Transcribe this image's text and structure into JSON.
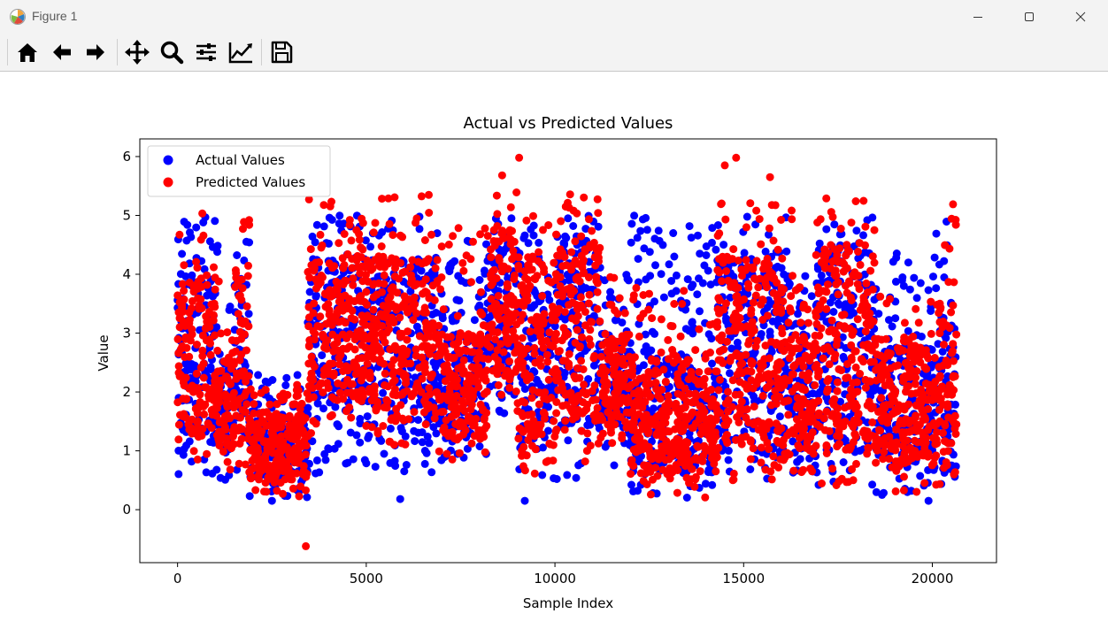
{
  "window": {
    "title": "Figure 1",
    "icon": "matplotlib-logo-icon",
    "controls": [
      "minimize-icon",
      "maximize-icon",
      "close-icon"
    ]
  },
  "toolbar": {
    "tools": [
      {
        "name": "home",
        "icon": "home-icon"
      },
      {
        "name": "back",
        "icon": "arrow-left-icon"
      },
      {
        "name": "forward",
        "icon": "arrow-right-icon"
      },
      {
        "name": "pan",
        "icon": "move-icon"
      },
      {
        "name": "zoom",
        "icon": "magnifier-icon"
      },
      {
        "name": "configure-subplots",
        "icon": "sliders-icon"
      },
      {
        "name": "edit-axis",
        "icon": "line-chart-icon"
      },
      {
        "name": "save",
        "icon": "floppy-disk-icon"
      }
    ]
  },
  "chart_data": {
    "type": "scatter",
    "title": "Actual vs Predicted Values",
    "xlabel": "Sample Index",
    "ylabel": "Value",
    "xlim": [
      -1000,
      21700
    ],
    "ylim": [
      -0.9,
      6.3
    ],
    "xticks": [
      0,
      5000,
      10000,
      15000,
      20000
    ],
    "xtick_labels": [
      "0",
      "5000",
      "10000",
      "15000",
      "20000"
    ],
    "yticks": [
      0,
      1,
      2,
      3,
      4,
      5,
      6
    ],
    "ytick_labels": [
      "0",
      "1",
      "2",
      "3",
      "4",
      "5",
      "6"
    ],
    "grid": false,
    "legend_position": "upper left",
    "legend": [
      "Actual Values",
      "Predicted Values"
    ],
    "series": [
      {
        "name": "Actual Values",
        "color": "#0000ff",
        "n_points": 20640,
        "x_range": [
          0,
          20639
        ],
        "value_range": [
          0.15,
          5.0
        ],
        "note": "dense cloud; max clipped at 5.0",
        "outliers": [
          {
            "x": 5900,
            "y": 0.18
          },
          {
            "x": 9200,
            "y": 0.15
          },
          {
            "x": 19900,
            "y": 0.15
          },
          {
            "x": 2500,
            "y": 0.15
          }
        ]
      },
      {
        "name": "Predicted Values",
        "color": "#ff0000",
        "n_points": 20640,
        "x_range": [
          0,
          20639
        ],
        "value_range": [
          -0.62,
          5.98
        ],
        "note": "dense cloud overlapping actual values",
        "outliers": [
          {
            "x": 3400,
            "y": -0.62
          },
          {
            "x": 9050,
            "y": 5.98
          },
          {
            "x": 14800,
            "y": 5.98
          },
          {
            "x": 14500,
            "y": 5.85
          },
          {
            "x": 15700,
            "y": 5.65
          },
          {
            "x": 8600,
            "y": 5.68
          }
        ]
      }
    ],
    "bands": [
      {
        "x0": 0,
        "x1": 1100,
        "actual": [
          0.6,
          5.0
        ],
        "pred": [
          0.7,
          5.05
        ],
        "dense": [
          1.2,
          4.0
        ]
      },
      {
        "x0": 1100,
        "x1": 1500,
        "actual": [
          0.4,
          3.5
        ],
        "pred": [
          0.6,
          3.2
        ],
        "dense": [
          1.0,
          2.6
        ]
      },
      {
        "x0": 1500,
        "x1": 1900,
        "actual": [
          0.5,
          5.0
        ],
        "pred": [
          0.7,
          5.05
        ],
        "dense": [
          1.2,
          4.0
        ]
      },
      {
        "x0": 1900,
        "x1": 3450,
        "actual": [
          0.2,
          2.3
        ],
        "pred": [
          0.2,
          2.2
        ],
        "dense": [
          0.5,
          1.6
        ]
      },
      {
        "x0": 3450,
        "x1": 5200,
        "actual": [
          0.6,
          5.0
        ],
        "pred": [
          1.3,
          5.3
        ],
        "dense": [
          1.8,
          4.3
        ]
      },
      {
        "x0": 5200,
        "x1": 6900,
        "actual": [
          0.6,
          5.0
        ],
        "pred": [
          1.0,
          5.4
        ],
        "dense": [
          1.5,
          4.3
        ]
      },
      {
        "x0": 6900,
        "x1": 8200,
        "actual": [
          0.8,
          4.6
        ],
        "pred": [
          0.8,
          4.8
        ],
        "dense": [
          1.2,
          3.0
        ]
      },
      {
        "x0": 8200,
        "x1": 9000,
        "actual": [
          1.5,
          5.0
        ],
        "pred": [
          1.6,
          5.5
        ],
        "dense": [
          2.0,
          4.8
        ]
      },
      {
        "x0": 9000,
        "x1": 10000,
        "actual": [
          0.4,
          5.0
        ],
        "pred": [
          0.5,
          5.3
        ],
        "dense": [
          1.0,
          4.2
        ]
      },
      {
        "x0": 10000,
        "x1": 11200,
        "actual": [
          0.5,
          5.0
        ],
        "pred": [
          0.7,
          5.4
        ],
        "dense": [
          1.3,
          4.6
        ]
      },
      {
        "x0": 11200,
        "x1": 12000,
        "actual": [
          0.7,
          4.0
        ],
        "pred": [
          1.0,
          4.0
        ],
        "dense": [
          1.4,
          3.0
        ]
      },
      {
        "x0": 12000,
        "x1": 13600,
        "actual": [
          0.2,
          5.0
        ],
        "pred": [
          0.2,
          3.8
        ],
        "dense": [
          0.6,
          2.6
        ]
      },
      {
        "x0": 13600,
        "x1": 14300,
        "actual": [
          0.3,
          4.8
        ],
        "pred": [
          0.2,
          3.2
        ],
        "dense": [
          0.6,
          2.4
        ]
      },
      {
        "x0": 14300,
        "x1": 15900,
        "actual": [
          0.5,
          5.0
        ],
        "pred": [
          0.5,
          5.3
        ],
        "dense": [
          1.0,
          4.3
        ]
      },
      {
        "x0": 15900,
        "x1": 16300,
        "actual": [
          0.3,
          5.0
        ],
        "pred": [
          0.5,
          5.2
        ],
        "dense": [
          0.8,
          4.0
        ]
      },
      {
        "x0": 16300,
        "x1": 16900,
        "actual": [
          0.5,
          4.0
        ],
        "pred": [
          0.6,
          3.8
        ],
        "dense": [
          1.0,
          3.0
        ]
      },
      {
        "x0": 16900,
        "x1": 18500,
        "actual": [
          0.4,
          5.0
        ],
        "pred": [
          0.4,
          5.4
        ],
        "dense": [
          1.0,
          4.5
        ]
      },
      {
        "x0": 18500,
        "x1": 20100,
        "actual": [
          0.2,
          4.5
        ],
        "pred": [
          0.3,
          3.8
        ],
        "dense": [
          0.7,
          2.8
        ]
      },
      {
        "x0": 20100,
        "x1": 20640,
        "actual": [
          0.3,
          5.0
        ],
        "pred": [
          0.4,
          5.35
        ],
        "dense": [
          0.6,
          3.5
        ]
      }
    ]
  }
}
